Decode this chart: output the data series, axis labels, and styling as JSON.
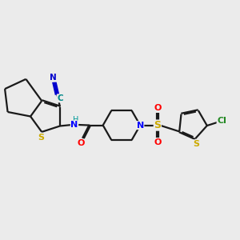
{
  "background_color": "#ebebeb",
  "bond_color": "#1a1a1a",
  "bond_width": 1.6,
  "atom_colors": {
    "N": "#0000ff",
    "O": "#ff0000",
    "S": "#ccaa00",
    "Cl": "#228822",
    "H": "#009999",
    "C_cyan": "#008888",
    "N_cyan": "#0000cc"
  },
  "figsize": [
    3.0,
    3.0
  ],
  "dpi": 100
}
